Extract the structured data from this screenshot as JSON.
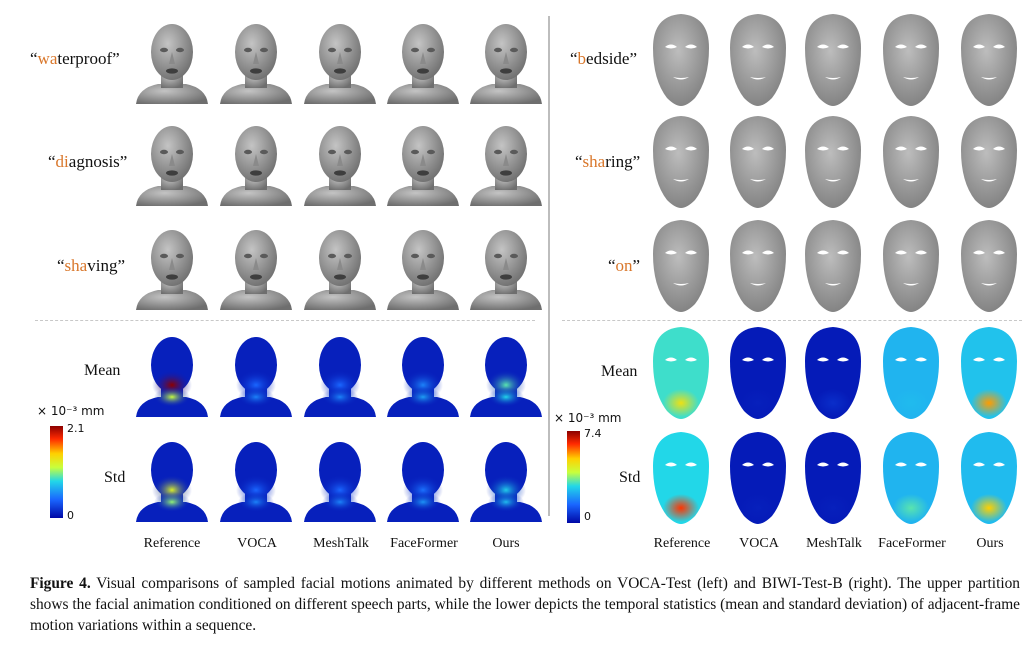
{
  "left_panel": {
    "words": [
      {
        "pre": "“",
        "hl": "wa",
        "post": "terproof”"
      },
      {
        "pre": "“",
        "hl": "di",
        "post": "agnosis”"
      },
      {
        "pre": "“",
        "hl": "sha",
        "post": "ving”"
      }
    ],
    "stat_labels": [
      "Mean",
      "Std"
    ],
    "methods": [
      "Reference",
      "VOCA",
      "MeshTalk",
      "FaceFormer",
      "Ours"
    ],
    "colorbar": {
      "unit": "× 10⁻³ mm",
      "max": "2.1",
      "min": "0"
    }
  },
  "right_panel": {
    "words": [
      {
        "pre": "“",
        "hl": "b",
        "post": "edside”"
      },
      {
        "pre": "“",
        "hl": "sha",
        "post": "ring”"
      },
      {
        "pre": "“",
        "hl": "on",
        "post": "”"
      }
    ],
    "stat_labels": [
      "Mean",
      "Std"
    ],
    "methods": [
      "Reference",
      "VOCA",
      "MeshTalk",
      "FaceFormer",
      "Ours"
    ],
    "colorbar": {
      "unit": "× 10⁻³ mm",
      "max": "7.4",
      "min": "0"
    }
  },
  "heatmaps": {
    "left": [
      [
        [
          1.0,
          0.55
        ],
        [
          0.2,
          0.25
        ],
        [
          0.2,
          0.25
        ],
        [
          0.25,
          0.3
        ],
        [
          0.45,
          0.4
        ]
      ],
      [
        [
          0.6,
          0.5
        ],
        [
          0.2,
          0.25
        ],
        [
          0.2,
          0.25
        ],
        [
          0.22,
          0.28
        ],
        [
          0.38,
          0.35
        ]
      ]
    ],
    "right": [
      [
        [
          0.65,
          0.7
        ],
        [
          0.05,
          0.08
        ],
        [
          0.08,
          0.1
        ],
        [
          0.35,
          0.35
        ],
        [
          0.75,
          0.45
        ]
      ],
      [
        [
          0.85,
          0.6
        ],
        [
          0.05,
          0.08
        ],
        [
          0.05,
          0.08
        ],
        [
          0.45,
          0.35
        ],
        [
          0.7,
          0.4
        ]
      ]
    ]
  },
  "caption": {
    "label": "Figure 4.",
    "text": "Visual comparisons of sampled facial motions animated by different methods on VOCA-Test (left) and BIWI-Test-B (right). The upper partition shows the facial animation conditioned on different speech parts, while the lower depicts the temporal statistics (mean and standard deviation) of adjacent-frame motion variations within a sequence."
  }
}
